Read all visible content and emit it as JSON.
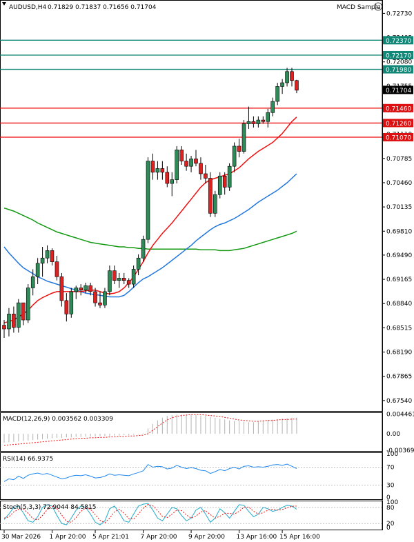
{
  "header": {
    "symbol_label": "AUDUSD,H4",
    "ohlc": "0.71829 0.71837 0.71656 0.71704",
    "indicator_name": "MACD Sample",
    "expand_icon": "collapse-caret-icon",
    "smiley_icon": "smiley-face-icon"
  },
  "colors": {
    "up_candle": "#2e8b57",
    "down_candle": "#dd2222",
    "ma_fast": "#ee1111",
    "ma_mid": "#2277dd",
    "ma_slow": "#119911",
    "hline_red": "#ee1111",
    "hline_teal": "#118877",
    "label_red": "#dd1111",
    "label_teal": "#118877",
    "label_current": "#000000"
  },
  "price_axis": {
    "ticks": [
      "0.72730",
      "0.72405",
      "0.72080",
      "0.71755",
      "0.71430",
      "0.71110",
      "0.70785",
      "0.70460",
      "0.70135",
      "0.69810",
      "0.69490",
      "0.69165",
      "0.68840",
      "0.68515",
      "0.68190",
      "0.67865",
      "0.67540"
    ]
  },
  "level_labels": [
    {
      "text": "0.72370",
      "color": "teal"
    },
    {
      "text": "0.72170",
      "color": "teal"
    },
    {
      "text": "0.71980",
      "color": "teal"
    },
    {
      "text": "0.71704",
      "color": "current"
    },
    {
      "text": "0.71460",
      "color": "red"
    },
    {
      "text": "0.71260",
      "color": "red"
    },
    {
      "text": "0.71070",
      "color": "red"
    }
  ],
  "time_axis": {
    "labels": [
      "30 Mar 2026",
      "1 Apr 20:00",
      "5 Apr 21:01",
      "7 Apr 20:00",
      "9 Apr 20:00",
      "13 Apr 16:00",
      "15 Apr 16:00"
    ]
  },
  "macd": {
    "label": "MACD(12,26,9) 0.003562 0.003309",
    "ticks": [
      "0.004461",
      "0.00",
      "-0.003697"
    ]
  },
  "rsi": {
    "label": "RSI(14) 66.9375",
    "ticks": [
      "100",
      "70",
      "30",
      "0"
    ]
  },
  "stoch": {
    "label": "Stoch(5,3,3) 72.9044 84.5815",
    "ticks": [
      "100",
      "80",
      "20",
      "0"
    ]
  },
  "chart_data": {
    "type": "candlestick",
    "symbol": "AUDUSD",
    "timeframe": "H4",
    "ylim": [
      0.674,
      0.729
    ],
    "horizontal_levels": [
      {
        "value": 0.7237,
        "color": "teal"
      },
      {
        "value": 0.7217,
        "color": "teal"
      },
      {
        "value": 0.7198,
        "color": "teal"
      },
      {
        "value": 0.7146,
        "color": "red"
      },
      {
        "value": 0.7126,
        "color": "red"
      },
      {
        "value": 0.7107,
        "color": "red"
      }
    ],
    "candles": [
      [
        0.6855,
        0.6862,
        0.6838,
        0.685
      ],
      [
        0.685,
        0.6878,
        0.684,
        0.687
      ],
      [
        0.687,
        0.688,
        0.6845,
        0.6852
      ],
      [
        0.6852,
        0.689,
        0.6845,
        0.6885
      ],
      [
        0.6885,
        0.6885,
        0.6855,
        0.6862
      ],
      [
        0.6862,
        0.691,
        0.6858,
        0.6905
      ],
      [
        0.6905,
        0.693,
        0.6895,
        0.692
      ],
      [
        0.692,
        0.6945,
        0.691,
        0.6938
      ],
      [
        0.6938,
        0.696,
        0.692,
        0.6945
      ],
      [
        0.6945,
        0.6962,
        0.6938,
        0.6955
      ],
      [
        0.6955,
        0.6958,
        0.6935,
        0.694
      ],
      [
        0.694,
        0.6948,
        0.6915,
        0.692
      ],
      [
        0.692,
        0.6925,
        0.688,
        0.6888
      ],
      [
        0.6888,
        0.6898,
        0.686,
        0.687
      ],
      [
        0.687,
        0.6905,
        0.6865,
        0.69
      ],
      [
        0.69,
        0.6908,
        0.689,
        0.6905
      ],
      [
        0.6905,
        0.691,
        0.6895,
        0.6902
      ],
      [
        0.6902,
        0.6912,
        0.6898,
        0.6908
      ],
      [
        0.6908,
        0.6912,
        0.6895,
        0.69
      ],
      [
        0.69,
        0.6905,
        0.688,
        0.6885
      ],
      [
        0.6885,
        0.69,
        0.6878,
        0.6882
      ],
      [
        0.6882,
        0.6905,
        0.6878,
        0.69
      ],
      [
        0.69,
        0.6935,
        0.6895,
        0.6928
      ],
      [
        0.6928,
        0.6935,
        0.691,
        0.6915
      ],
      [
        0.6915,
        0.6925,
        0.6905,
        0.6918
      ],
      [
        0.6918,
        0.6925,
        0.691,
        0.6915
      ],
      [
        0.6915,
        0.6918,
        0.6905,
        0.691
      ],
      [
        0.691,
        0.6935,
        0.6905,
        0.693
      ],
      [
        0.693,
        0.695,
        0.6922,
        0.6945
      ],
      [
        0.6945,
        0.6975,
        0.694,
        0.697
      ],
      [
        0.697,
        0.708,
        0.6965,
        0.7075
      ],
      [
        0.7075,
        0.7085,
        0.705,
        0.706
      ],
      [
        0.706,
        0.7075,
        0.705,
        0.7065
      ],
      [
        0.7065,
        0.7075,
        0.705,
        0.706
      ],
      [
        0.706,
        0.7068,
        0.704,
        0.7045
      ],
      [
        0.7045,
        0.706,
        0.7028,
        0.705
      ],
      [
        0.705,
        0.7095,
        0.7045,
        0.709
      ],
      [
        0.709,
        0.7095,
        0.707,
        0.7075
      ],
      [
        0.7075,
        0.7085,
        0.7062,
        0.7068
      ],
      [
        0.7068,
        0.7082,
        0.706,
        0.7078
      ],
      [
        0.7078,
        0.709,
        0.7068,
        0.7072
      ],
      [
        0.7072,
        0.708,
        0.705,
        0.7058
      ],
      [
        0.7058,
        0.707,
        0.7045,
        0.7052
      ],
      [
        0.7052,
        0.706,
        0.7,
        0.7005
      ],
      [
        0.7005,
        0.7035,
        0.7,
        0.703
      ],
      [
        0.703,
        0.706,
        0.7025,
        0.7055
      ],
      [
        0.7055,
        0.706,
        0.703,
        0.704
      ],
      [
        0.704,
        0.7072,
        0.7035,
        0.7068
      ],
      [
        0.7068,
        0.71,
        0.706,
        0.7095
      ],
      [
        0.7095,
        0.7105,
        0.708,
        0.7088
      ],
      [
        0.7088,
        0.713,
        0.7085,
        0.7125
      ],
      [
        0.7125,
        0.7148,
        0.7118,
        0.7128
      ],
      [
        0.7128,
        0.7135,
        0.712,
        0.7125
      ],
      [
        0.7125,
        0.7135,
        0.712,
        0.713
      ],
      [
        0.713,
        0.7135,
        0.7125,
        0.7128
      ],
      [
        0.7128,
        0.7145,
        0.712,
        0.714
      ],
      [
        0.714,
        0.716,
        0.7135,
        0.7155
      ],
      [
        0.7155,
        0.718,
        0.715,
        0.7175
      ],
      [
        0.7175,
        0.7185,
        0.7165,
        0.718
      ],
      [
        0.718,
        0.72,
        0.7175,
        0.7195
      ],
      [
        0.7195,
        0.72,
        0.7175,
        0.7183
      ],
      [
        0.7183,
        0.7184,
        0.7166,
        0.717
      ]
    ],
    "ma_fast": [
      0.6858,
      0.686,
      0.6862,
      0.6866,
      0.687,
      0.6875,
      0.6882,
      0.6888,
      0.6892,
      0.6895,
      0.6898,
      0.69,
      0.69,
      0.69,
      0.69,
      0.69,
      0.69,
      0.6901,
      0.6902,
      0.6902,
      0.69,
      0.6898,
      0.6897,
      0.6898,
      0.69,
      0.6905,
      0.6912,
      0.692,
      0.693,
      0.694,
      0.6952,
      0.6962,
      0.697,
      0.6978,
      0.6985,
      0.6992,
      0.7,
      0.7008,
      0.7016,
      0.7024,
      0.7032,
      0.704,
      0.7046,
      0.705,
      0.7052,
      0.7054,
      0.7056,
      0.7058,
      0.7062,
      0.7066,
      0.7072,
      0.7078,
      0.7083,
      0.7088,
      0.7092,
      0.7096,
      0.71,
      0.7106,
      0.7112,
      0.712,
      0.7128,
      0.7134
    ],
    "ma_mid": [
      0.696,
      0.6952,
      0.6945,
      0.6938,
      0.6932,
      0.6928,
      0.6924,
      0.692,
      0.6917,
      0.6914,
      0.6912,
      0.691,
      0.6908,
      0.6906,
      0.6904,
      0.6902,
      0.69,
      0.6898,
      0.6897,
      0.6896,
      0.6895,
      0.6894,
      0.6893,
      0.6893,
      0.6893,
      0.6895,
      0.69,
      0.6906,
      0.6912,
      0.6917,
      0.692,
      0.6924,
      0.6928,
      0.6932,
      0.6937,
      0.6942,
      0.6947,
      0.6952,
      0.6957,
      0.6962,
      0.6968,
      0.6973,
      0.6978,
      0.6983,
      0.6987,
      0.699,
      0.6992,
      0.6995,
      0.6998,
      0.7002,
      0.7006,
      0.701,
      0.7015,
      0.702,
      0.7024,
      0.7028,
      0.7032,
      0.7036,
      0.7041,
      0.7046,
      0.7052,
      0.7058
    ],
    "ma_slow": [
      0.7012,
      0.701,
      0.7008,
      0.7005,
      0.7002,
      0.6999,
      0.6996,
      0.6992,
      0.6989,
      0.6986,
      0.6983,
      0.698,
      0.6978,
      0.6976,
      0.6974,
      0.6972,
      0.697,
      0.6968,
      0.6966,
      0.6965,
      0.6964,
      0.6963,
      0.6962,
      0.6961,
      0.696,
      0.696,
      0.6959,
      0.6959,
      0.6958,
      0.6958,
      0.6957,
      0.6957,
      0.6957,
      0.6957,
      0.6957,
      0.6957,
      0.6957,
      0.6957,
      0.6957,
      0.6957,
      0.6957,
      0.6956,
      0.6956,
      0.6956,
      0.6956,
      0.6955,
      0.6955,
      0.6955,
      0.6956,
      0.6957,
      0.6958,
      0.696,
      0.6962,
      0.6964,
      0.6966,
      0.6968,
      0.697,
      0.6972,
      0.6974,
      0.6976,
      0.6978,
      0.6981
    ],
    "macd_hist": [
      -0.002,
      -0.0019,
      -0.0018,
      -0.0017,
      -0.0016,
      -0.0015,
      -0.0014,
      -0.0013,
      -0.0012,
      -0.0011,
      -0.001,
      -0.0009,
      -0.0009,
      -0.0008,
      -0.0008,
      -0.0007,
      -0.0007,
      -0.0006,
      -0.0006,
      -0.0006,
      -0.0005,
      -0.0005,
      -0.0004,
      -0.0004,
      -0.0004,
      -0.0003,
      -0.0003,
      -0.0002,
      -0.0001,
      0.0001,
      0.0012,
      0.0022,
      0.003,
      0.0036,
      0.004,
      0.0042,
      0.0043,
      0.0043,
      0.0043,
      0.0043,
      0.0042,
      0.0041,
      0.004,
      0.0038,
      0.0036,
      0.0034,
      0.0032,
      0.003,
      0.0029,
      0.0028,
      0.0027,
      0.0026,
      0.0026,
      0.0027,
      0.0029,
      0.0031,
      0.0032,
      0.0033,
      0.0034,
      0.0035,
      0.0036,
      0.0036
    ],
    "macd_signal": [
      -0.0026,
      -0.0025,
      -0.0024,
      -0.0023,
      -0.0022,
      -0.0021,
      -0.002,
      -0.0019,
      -0.0018,
      -0.0017,
      -0.0016,
      -0.0015,
      -0.0014,
      -0.0013,
      -0.0012,
      -0.0011,
      -0.001,
      -0.001,
      -0.0009,
      -0.0009,
      -0.0008,
      -0.0008,
      -0.0007,
      -0.0007,
      -0.0006,
      -0.0006,
      -0.0005,
      -0.0005,
      -0.0004,
      -0.0003,
      0.0,
      0.0008,
      0.0016,
      0.0024,
      0.0031,
      0.0036,
      0.0039,
      0.0041,
      0.0042,
      0.0043,
      0.0043,
      0.0043,
      0.0042,
      0.0041,
      0.004,
      0.0039,
      0.0037,
      0.0035,
      0.0033,
      0.0031,
      0.003,
      0.0029,
      0.0028,
      0.0028,
      0.0029,
      0.003,
      0.003,
      0.0031,
      0.0032,
      0.0032,
      0.0033,
      0.0033
    ],
    "rsi": [
      38,
      44,
      42,
      50,
      45,
      52,
      55,
      57,
      54,
      56,
      52,
      48,
      44,
      46,
      50,
      52,
      51,
      53,
      50,
      46,
      47,
      50,
      55,
      52,
      53,
      52,
      51,
      55,
      58,
      62,
      76,
      70,
      72,
      71,
      66,
      68,
      74,
      70,
      67,
      69,
      67,
      63,
      62,
      56,
      60,
      65,
      62,
      67,
      70,
      66,
      72,
      73,
      70,
      71,
      70,
      72,
      75,
      76,
      74,
      77,
      72,
      67
    ],
    "stoch_k": [
      35,
      55,
      80,
      85,
      60,
      30,
      25,
      45,
      80,
      90,
      85,
      50,
      20,
      15,
      40,
      70,
      85,
      80,
      55,
      25,
      15,
      30,
      75,
      85,
      60,
      30,
      25,
      55,
      85,
      92,
      95,
      70,
      40,
      30,
      55,
      80,
      75,
      50,
      30,
      40,
      70,
      80,
      55,
      25,
      40,
      75,
      60,
      40,
      65,
      90,
      88,
      65,
      45,
      55,
      80,
      75,
      65,
      70,
      80,
      88,
      85,
      73
    ],
    "stoch_d": [
      40,
      45,
      63,
      73,
      75,
      58,
      38,
      33,
      50,
      72,
      85,
      75,
      52,
      28,
      25,
      42,
      65,
      78,
      73,
      53,
      32,
      23,
      40,
      63,
      73,
      58,
      38,
      37,
      55,
      77,
      91,
      86,
      68,
      47,
      42,
      55,
      70,
      68,
      52,
      40,
      47,
      63,
      68,
      53,
      40,
      47,
      58,
      58,
      55,
      65,
      81,
      81,
      66,
      55,
      60,
      70,
      73,
      70,
      72,
      79,
      84,
      85
    ]
  }
}
